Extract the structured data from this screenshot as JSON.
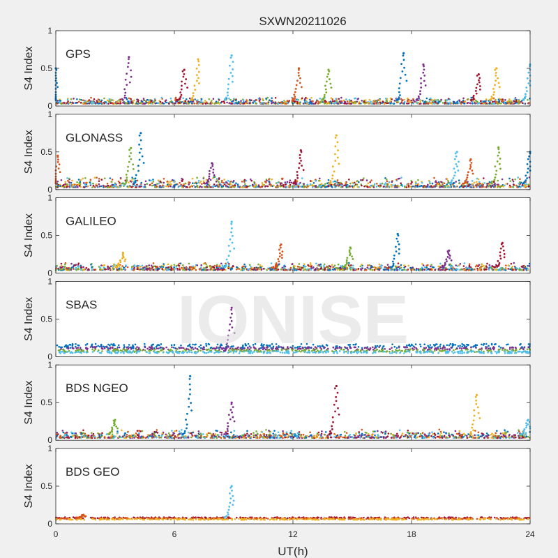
{
  "title": "SXWN20211026",
  "xlabel": "UT(h)",
  "watermark": "IONISE",
  "chart_data": [
    {
      "type": "scatter",
      "panel_label": "GPS",
      "ylabel": "S4 Index",
      "xlim": [
        0,
        24
      ],
      "ylim": [
        0,
        1
      ],
      "xticks": [
        0,
        6,
        12,
        18,
        24
      ],
      "yticks": [
        0,
        0.5,
        1
      ],
      "baseline": [
        0.03,
        0.1
      ],
      "spikes": [
        {
          "x": 0.0,
          "y": 0.5
        },
        {
          "x": 3.7,
          "y": 0.65
        },
        {
          "x": 6.5,
          "y": 0.48
        },
        {
          "x": 7.2,
          "y": 0.62
        },
        {
          "x": 8.9,
          "y": 0.67
        },
        {
          "x": 12.3,
          "y": 0.5
        },
        {
          "x": 13.8,
          "y": 0.48
        },
        {
          "x": 17.6,
          "y": 0.7
        },
        {
          "x": 18.6,
          "y": 0.55
        },
        {
          "x": 21.4,
          "y": 0.42
        },
        {
          "x": 22.3,
          "y": 0.5
        },
        {
          "x": 24.0,
          "y": 0.55
        }
      ]
    },
    {
      "type": "scatter",
      "panel_label": "GLONASS",
      "ylabel": "S4 Index",
      "xlim": [
        0,
        24
      ],
      "ylim": [
        0,
        1
      ],
      "xticks": [
        0,
        6,
        12,
        18,
        24
      ],
      "yticks": [
        0,
        0.5,
        1
      ],
      "baseline": [
        0.03,
        0.14
      ],
      "spikes": [
        {
          "x": 0.1,
          "y": 0.45
        },
        {
          "x": 3.8,
          "y": 0.55
        },
        {
          "x": 4.3,
          "y": 0.75
        },
        {
          "x": 7.9,
          "y": 0.35
        },
        {
          "x": 12.4,
          "y": 0.52
        },
        {
          "x": 14.2,
          "y": 0.72
        },
        {
          "x": 20.3,
          "y": 0.5
        },
        {
          "x": 21.0,
          "y": 0.4
        },
        {
          "x": 22.4,
          "y": 0.56
        },
        {
          "x": 24.0,
          "y": 0.5
        }
      ]
    },
    {
      "type": "scatter",
      "panel_label": "GALILEO",
      "ylabel": "S4 Index",
      "xlim": [
        0,
        24
      ],
      "ylim": [
        0,
        1
      ],
      "xticks": [
        0,
        6,
        12,
        18,
        24
      ],
      "yticks": [
        0,
        0.5,
        1
      ],
      "baseline": [
        0.04,
        0.12
      ],
      "spikes": [
        {
          "x": 3.4,
          "y": 0.27
        },
        {
          "x": 8.9,
          "y": 0.68
        },
        {
          "x": 11.4,
          "y": 0.38
        },
        {
          "x": 14.9,
          "y": 0.34
        },
        {
          "x": 17.3,
          "y": 0.52
        },
        {
          "x": 19.9,
          "y": 0.3
        },
        {
          "x": 22.6,
          "y": 0.4
        }
      ]
    },
    {
      "type": "scatter",
      "panel_label": "SBAS",
      "ylabel": "S4 Index",
      "xlim": [
        0,
        24
      ],
      "ylim": [
        0,
        1
      ],
      "xticks": [
        0,
        6,
        12,
        18,
        24
      ],
      "yticks": [
        0,
        0.5,
        1
      ],
      "bands": [
        {
          "y": 0.14,
          "spread": 0.03,
          "color": "#0072BD"
        },
        {
          "y": 0.11,
          "spread": 0.02,
          "color": "#7E2F8E"
        },
        {
          "y": 0.08,
          "spread": 0.02,
          "color": "#77AC30"
        },
        {
          "y": 0.06,
          "spread": 0.015,
          "color": "#4DBEEE"
        }
      ],
      "spikes": [
        {
          "x": 8.9,
          "y": 0.65
        }
      ]
    },
    {
      "type": "scatter",
      "panel_label": "BDS NGEO",
      "ylabel": "S4 Index",
      "xlim": [
        0,
        24
      ],
      "ylim": [
        0,
        1
      ],
      "xticks": [
        0,
        6,
        12,
        18,
        24
      ],
      "yticks": [
        0,
        0.5,
        1
      ],
      "baseline": [
        0.03,
        0.12
      ],
      "spikes": [
        {
          "x": 3.0,
          "y": 0.27
        },
        {
          "x": 6.8,
          "y": 0.85
        },
        {
          "x": 8.9,
          "y": 0.5
        },
        {
          "x": 14.2,
          "y": 0.72
        },
        {
          "x": 21.3,
          "y": 0.6
        },
        {
          "x": 23.9,
          "y": 0.27
        }
      ]
    },
    {
      "type": "scatter",
      "panel_label": "BDS GEO",
      "ylabel": "S4 Index",
      "xlim": [
        0,
        24
      ],
      "ylim": [
        0,
        1
      ],
      "xticks": [
        0,
        6,
        12,
        18,
        24
      ],
      "yticks": [
        0,
        0.5,
        1
      ],
      "bands": [
        {
          "y": 0.08,
          "spread": 0.008,
          "color": "#A2142F"
        },
        {
          "y": 0.07,
          "spread": 0.008,
          "color": "#D95319"
        },
        {
          "y": 0.06,
          "spread": 0.008,
          "color": "#EDB120"
        }
      ],
      "spikes": [
        {
          "x": 8.9,
          "y": 0.5
        },
        {
          "x": 1.4,
          "y": 0.12
        }
      ]
    }
  ],
  "colors": [
    "#0072BD",
    "#D95319",
    "#EDB120",
    "#7E2F8E",
    "#77AC30",
    "#4DBEEE",
    "#A2142F"
  ]
}
